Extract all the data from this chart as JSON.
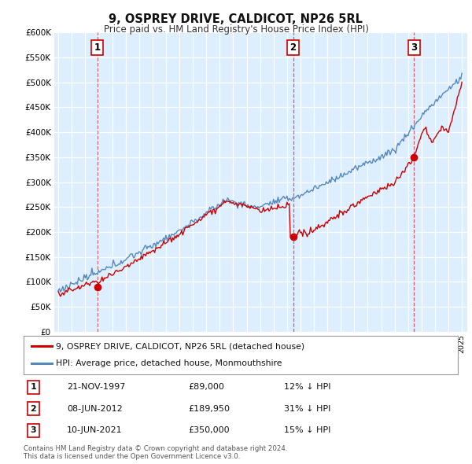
{
  "title": "9, OSPREY DRIVE, CALDICOT, NP26 5RL",
  "subtitle": "Price paid vs. HM Land Registry's House Price Index (HPI)",
  "legend_entry1": "9, OSPREY DRIVE, CALDICOT, NP26 5RL (detached house)",
  "legend_entry2": "HPI: Average price, detached house, Monmouthshire",
  "table_rows": [
    {
      "num": "1",
      "date": "21-NOV-1997",
      "price": "£89,000",
      "hpi": "12% ↓ HPI"
    },
    {
      "num": "2",
      "date": "08-JUN-2012",
      "price": "£189,950",
      "hpi": "31% ↓ HPI"
    },
    {
      "num": "3",
      "date": "10-JUN-2021",
      "price": "£350,000",
      "hpi": "15% ↓ HPI"
    }
  ],
  "footer": "Contains HM Land Registry data © Crown copyright and database right 2024.\nThis data is licensed under the Open Government Licence v3.0.",
  "line_color_red": "#cc0000",
  "line_color_blue": "#5588bb",
  "fill_color_blue": "#ddeeff",
  "background_color": "#ffffff",
  "grid_color": "#cccccc",
  "sale_marker_color": "#cc0000",
  "ylim": [
    0,
    600000
  ],
  "yticks": [
    0,
    50000,
    100000,
    150000,
    200000,
    250000,
    300000,
    350000,
    400000,
    450000,
    500000,
    550000,
    600000
  ],
  "sale_points": [
    {
      "year": 1997.9,
      "value": 89000,
      "label": "1"
    },
    {
      "year": 2012.45,
      "value": 189950,
      "label": "2"
    },
    {
      "year": 2021.45,
      "value": 350000,
      "label": "3"
    }
  ],
  "vline_color": "#cc0000",
  "vline_alpha": 0.6,
  "xstart": 1995,
  "xend": 2025
}
